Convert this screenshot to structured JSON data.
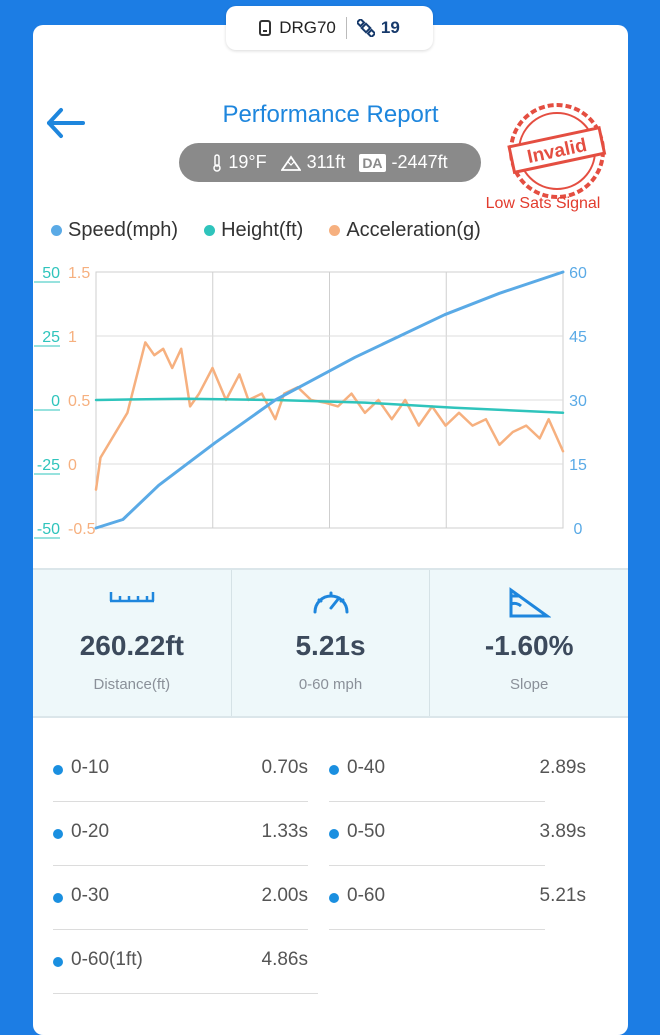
{
  "device": {
    "name": "DRG70",
    "sats": "19"
  },
  "header": {
    "title": "Performance Report"
  },
  "env": {
    "temp": "19°F",
    "altitude": "311ft",
    "da_label": "DA",
    "density_altitude": "-2447ft"
  },
  "stamp": {
    "text": "Invalid",
    "note": "Low Sats Signal"
  },
  "legend": {
    "speed": "Speed(mph)",
    "height": "Height(ft)",
    "accel": "Acceleration(g)"
  },
  "colors": {
    "speed": "#5aaae6",
    "height": "#2fc4bc",
    "accel": "#f6b07f",
    "accent": "#1e86dd",
    "invalid": "#e23b2d"
  },
  "chart_data": {
    "type": "line",
    "height_axis": {
      "ticks": [
        "50",
        "25",
        "0",
        "-25",
        "-50"
      ],
      "range": [
        -50,
        50
      ]
    },
    "accel_axis": {
      "ticks": [
        "1.5",
        "1",
        "0.5",
        "0",
        "-0.5"
      ],
      "range": [
        -0.5,
        1.5
      ]
    },
    "speed_axis": {
      "ticks": [
        "60",
        "45",
        "30",
        "15",
        "0"
      ],
      "range": [
        0,
        60
      ]
    },
    "x_range": [
      0,
      5.21
    ],
    "series": [
      {
        "name": "Speed(mph)",
        "axis": "speed",
        "x": [
          0,
          0.3,
          0.7,
          1.33,
          2.0,
          2.89,
          3.89,
          4.5,
          5.21
        ],
        "y": [
          0,
          2,
          10,
          20,
          30,
          40,
          50,
          55,
          60
        ]
      },
      {
        "name": "Height(ft)",
        "axis": "height",
        "x": [
          0,
          1,
          2,
          3,
          4,
          5.21
        ],
        "y": [
          0,
          0.5,
          0,
          -1,
          -3,
          -5
        ]
      },
      {
        "name": "Acceleration(g)",
        "axis": "accel",
        "x": [
          0,
          0.05,
          0.35,
          0.55,
          0.65,
          0.75,
          0.85,
          0.95,
          1.05,
          1.15,
          1.3,
          1.45,
          1.6,
          1.7,
          1.85,
          2.0,
          2.1,
          2.25,
          2.4,
          2.55,
          2.7,
          2.85,
          3.0,
          3.15,
          3.3,
          3.45,
          3.6,
          3.75,
          3.9,
          4.05,
          4.2,
          4.35,
          4.5,
          4.65,
          4.8,
          4.95,
          5.05,
          5.21
        ],
        "y": [
          -0.2,
          0.05,
          0.4,
          0.95,
          0.85,
          0.9,
          0.75,
          0.9,
          0.45,
          0.55,
          0.75,
          0.5,
          0.7,
          0.5,
          0.55,
          0.35,
          0.55,
          0.6,
          0.5,
          0.48,
          0.45,
          0.55,
          0.4,
          0.5,
          0.35,
          0.5,
          0.3,
          0.45,
          0.3,
          0.4,
          0.3,
          0.35,
          0.15,
          0.25,
          0.3,
          0.2,
          0.35,
          0.1
        ]
      }
    ]
  },
  "stats": [
    {
      "value": "260.22ft",
      "label": "Distance(ft)",
      "icon": "ruler-icon"
    },
    {
      "value": "5.21s",
      "label": "0-60 mph",
      "icon": "speedometer-icon"
    },
    {
      "value": "-1.60%",
      "label": "Slope",
      "icon": "slope-icon"
    }
  ],
  "splits": [
    {
      "name": "0-10",
      "time": "0.70s"
    },
    {
      "name": "0-40",
      "time": "2.89s"
    },
    {
      "name": "0-20",
      "time": "1.33s"
    },
    {
      "name": "0-50",
      "time": "3.89s"
    },
    {
      "name": "0-30",
      "time": "2.00s"
    },
    {
      "name": "0-60",
      "time": "5.21s"
    },
    {
      "name": "0-60(1ft)",
      "time": "4.86s"
    }
  ]
}
